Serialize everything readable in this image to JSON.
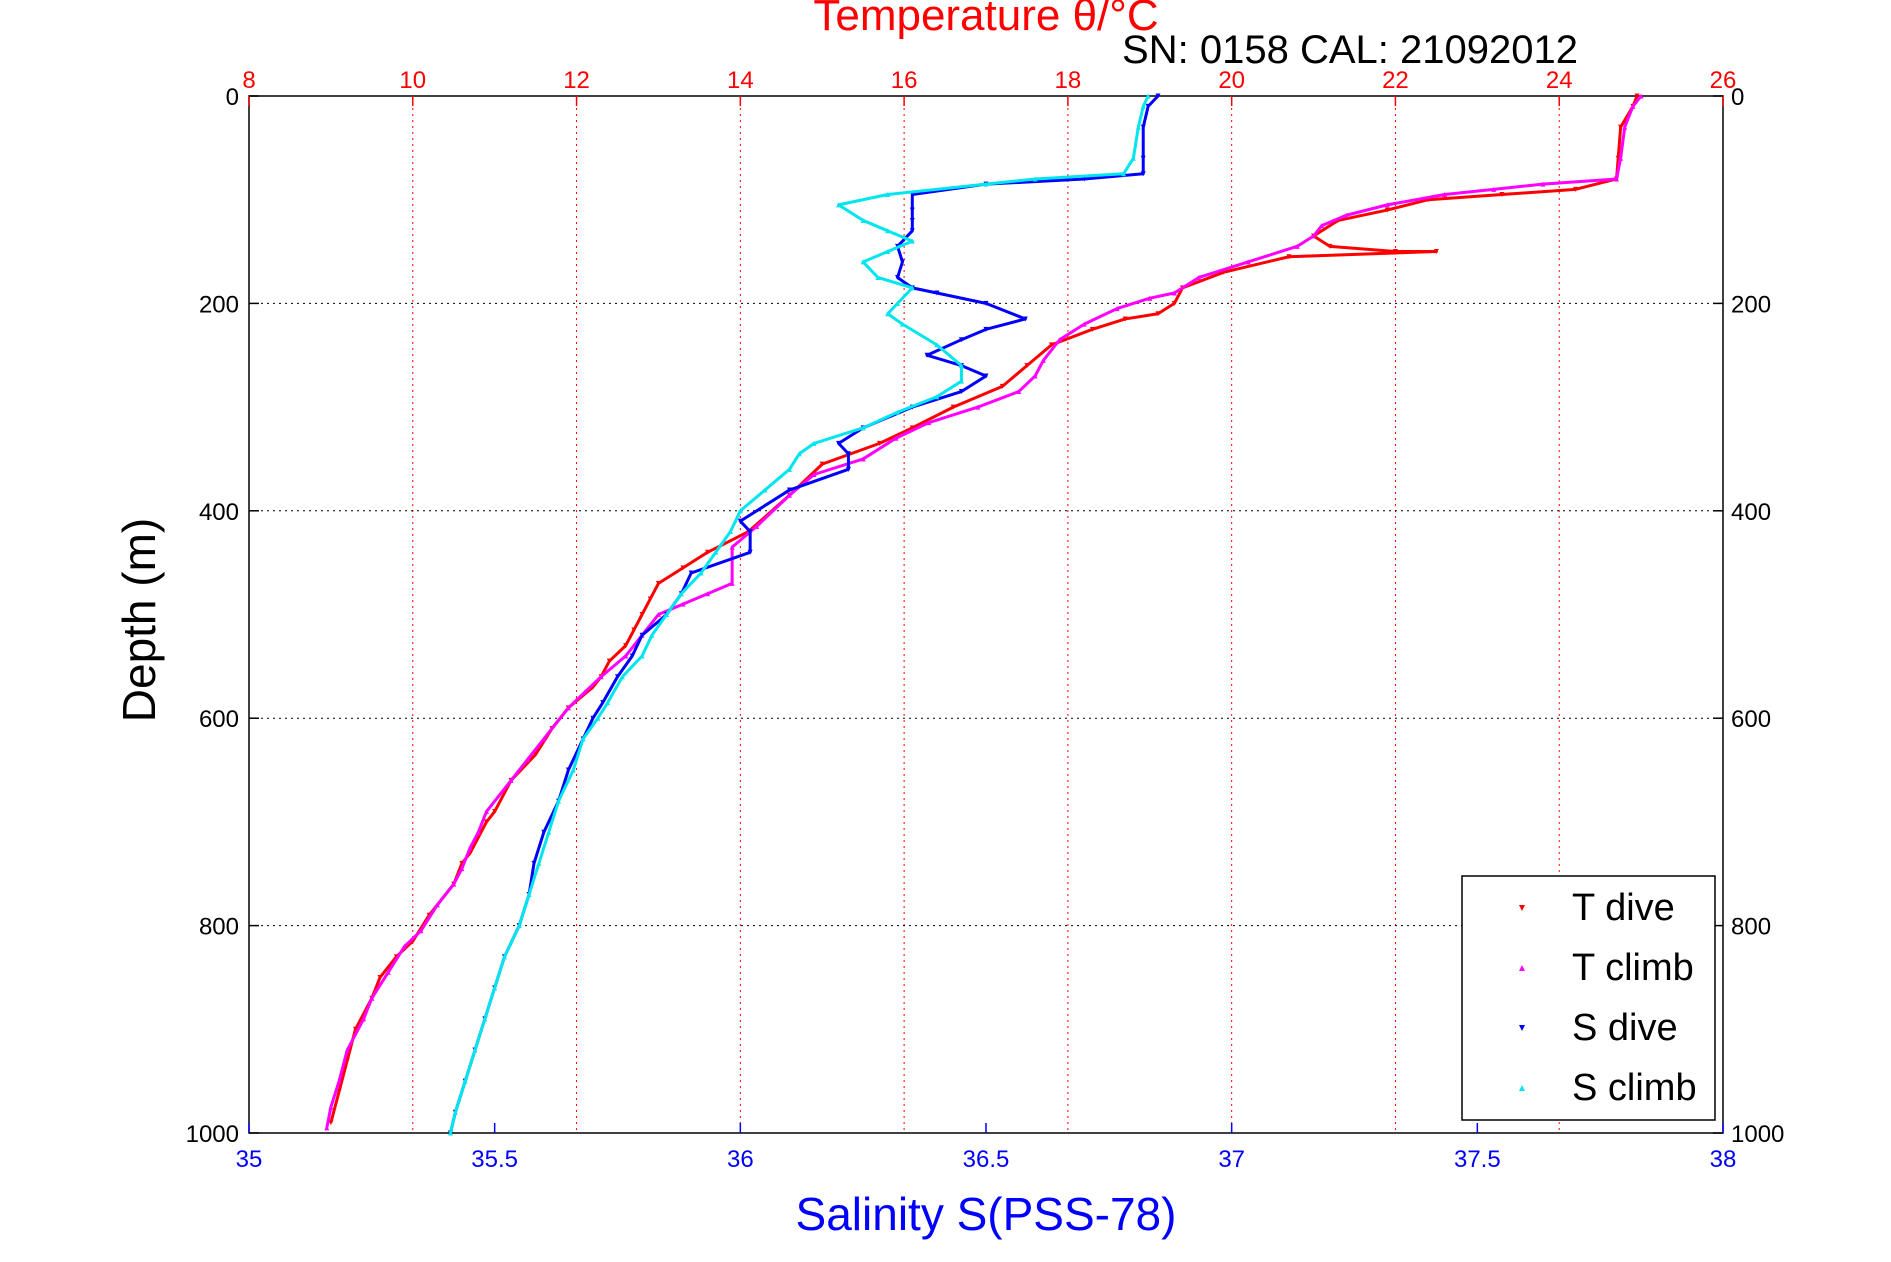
{
  "colors": {
    "temperature_axis": "#ff0000",
    "salinity_axis": "#0000ff",
    "depth_axis": "#000000",
    "t_dive": "#ff0000",
    "t_climb": "#ff00ff",
    "s_dive": "#0000ff",
    "s_climb": "#00e5ee"
  },
  "chart_data": {
    "type": "scatter",
    "title": "Temperature θ/°C",
    "subtitle": "SN: 0158  CAL: 21092012",
    "xlabel_top": "Temperature θ/°C",
    "xlabel_bottom": "Salinity S(PSS-78)",
    "ylabel": "Depth (m)",
    "x_top": {
      "range": [
        8,
        26
      ],
      "ticks": [
        8,
        10,
        12,
        14,
        16,
        18,
        20,
        22,
        24,
        26
      ],
      "tick_labels": [
        "8",
        "10",
        "12",
        "14",
        "16",
        "18",
        "20",
        "22",
        "24",
        "26"
      ]
    },
    "x_bottom": {
      "range": [
        35,
        38
      ],
      "ticks": [
        35,
        35.5,
        36,
        36.5,
        37,
        37.5,
        38
      ],
      "tick_labels": [
        "35",
        "35.5",
        "36",
        "36.5",
        "37",
        "37.5",
        "38"
      ]
    },
    "y": {
      "range": [
        0,
        1000
      ],
      "reversed": true,
      "ticks": [
        0,
        200,
        400,
        600,
        800,
        1000
      ],
      "tick_labels": [
        "0",
        "200",
        "400",
        "600",
        "800",
        "1000"
      ]
    },
    "grid": true,
    "legend_position": "bottom-right",
    "series": [
      {
        "name": "T dive",
        "axis": "temperature",
        "marker": "triangle-down",
        "points": [
          [
            24.95,
            0
          ],
          [
            24.9,
            10
          ],
          [
            24.75,
            30
          ],
          [
            24.72,
            60
          ],
          [
            24.7,
            80
          ],
          [
            24.2,
            90
          ],
          [
            23.3,
            95
          ],
          [
            22.4,
            100
          ],
          [
            21.9,
            110
          ],
          [
            21.3,
            120
          ],
          [
            21.0,
            135
          ],
          [
            21.2,
            145
          ],
          [
            22.0,
            150
          ],
          [
            22.5,
            150
          ],
          [
            20.7,
            155
          ],
          [
            19.9,
            170
          ],
          [
            19.4,
            185
          ],
          [
            19.3,
            200
          ],
          [
            19.1,
            210
          ],
          [
            18.7,
            215
          ],
          [
            18.3,
            225
          ],
          [
            17.8,
            240
          ],
          [
            17.5,
            260
          ],
          [
            17.2,
            280
          ],
          [
            16.6,
            300
          ],
          [
            16.1,
            320
          ],
          [
            15.7,
            335
          ],
          [
            15.0,
            355
          ],
          [
            14.6,
            385
          ],
          [
            14.1,
            420
          ],
          [
            13.6,
            440
          ],
          [
            13.3,
            455
          ],
          [
            13.0,
            470
          ],
          [
            12.9,
            485
          ],
          [
            12.8,
            500
          ],
          [
            12.7,
            515
          ],
          [
            12.6,
            530
          ],
          [
            12.4,
            545
          ],
          [
            12.3,
            560
          ],
          [
            12.2,
            570
          ],
          [
            11.9,
            590
          ],
          [
            11.7,
            610
          ],
          [
            11.5,
            635
          ],
          [
            11.2,
            660
          ],
          [
            11.0,
            690
          ],
          [
            10.9,
            700
          ],
          [
            10.7,
            730
          ],
          [
            10.6,
            740
          ],
          [
            10.5,
            760
          ],
          [
            10.2,
            790
          ],
          [
            10.0,
            815
          ],
          [
            9.8,
            830
          ],
          [
            9.6,
            850
          ],
          [
            9.5,
            870
          ],
          [
            9.3,
            900
          ],
          [
            9.2,
            930
          ],
          [
            9.1,
            960
          ],
          [
            9.0,
            990
          ]
        ]
      },
      {
        "name": "T climb",
        "axis": "temperature",
        "marker": "triangle-up",
        "points": [
          [
            25.0,
            0
          ],
          [
            24.9,
            10
          ],
          [
            24.8,
            30
          ],
          [
            24.75,
            60
          ],
          [
            24.7,
            80
          ],
          [
            23.8,
            85
          ],
          [
            23.2,
            90
          ],
          [
            22.6,
            95
          ],
          [
            21.9,
            105
          ],
          [
            21.4,
            115
          ],
          [
            21.1,
            125
          ],
          [
            21.0,
            135
          ],
          [
            20.8,
            145
          ],
          [
            20.2,
            160
          ],
          [
            19.6,
            175
          ],
          [
            19.3,
            190
          ],
          [
            19.0,
            195
          ],
          [
            18.6,
            205
          ],
          [
            18.2,
            220
          ],
          [
            17.9,
            235
          ],
          [
            17.7,
            255
          ],
          [
            17.6,
            270
          ],
          [
            17.4,
            285
          ],
          [
            16.9,
            300
          ],
          [
            16.3,
            315
          ],
          [
            15.9,
            330
          ],
          [
            15.5,
            350
          ],
          [
            14.9,
            365
          ],
          [
            14.6,
            385
          ],
          [
            14.2,
            415
          ],
          [
            13.9,
            435
          ],
          [
            13.9,
            470
          ],
          [
            13.6,
            480
          ],
          [
            13.3,
            490
          ],
          [
            13.0,
            500
          ],
          [
            12.8,
            520
          ],
          [
            12.6,
            540
          ],
          [
            12.3,
            560
          ],
          [
            12.1,
            575
          ],
          [
            11.9,
            590
          ],
          [
            11.6,
            620
          ],
          [
            11.4,
            640
          ],
          [
            11.2,
            660
          ],
          [
            10.9,
            690
          ],
          [
            10.8,
            710
          ],
          [
            10.7,
            725
          ],
          [
            10.6,
            745
          ],
          [
            10.5,
            760
          ],
          [
            10.3,
            780
          ],
          [
            10.1,
            805
          ],
          [
            9.9,
            820
          ],
          [
            9.7,
            845
          ],
          [
            9.5,
            870
          ],
          [
            9.4,
            890
          ],
          [
            9.2,
            920
          ],
          [
            9.1,
            950
          ],
          [
            9.0,
            975
          ],
          [
            8.95,
            995
          ]
        ]
      },
      {
        "name": "S dive",
        "axis": "salinity",
        "marker": "triangle-down",
        "points": [
          [
            36.85,
            0
          ],
          [
            36.83,
            10
          ],
          [
            36.82,
            30
          ],
          [
            36.82,
            60
          ],
          [
            36.82,
            75
          ],
          [
            36.7,
            80
          ],
          [
            36.5,
            85
          ],
          [
            36.35,
            95
          ],
          [
            36.35,
            110
          ],
          [
            36.35,
            120
          ],
          [
            36.35,
            130
          ],
          [
            36.32,
            145
          ],
          [
            36.33,
            160
          ],
          [
            36.32,
            175
          ],
          [
            36.35,
            185
          ],
          [
            36.4,
            190
          ],
          [
            36.5,
            200
          ],
          [
            36.58,
            215
          ],
          [
            36.5,
            225
          ],
          [
            36.45,
            235
          ],
          [
            36.38,
            250
          ],
          [
            36.45,
            260
          ],
          [
            36.5,
            270
          ],
          [
            36.45,
            285
          ],
          [
            36.35,
            300
          ],
          [
            36.25,
            320
          ],
          [
            36.2,
            335
          ],
          [
            36.22,
            345
          ],
          [
            36.22,
            360
          ],
          [
            36.1,
            380
          ],
          [
            36.0,
            410
          ],
          [
            36.02,
            420
          ],
          [
            36.02,
            440
          ],
          [
            35.9,
            460
          ],
          [
            35.88,
            480
          ],
          [
            35.85,
            500
          ],
          [
            35.8,
            520
          ],
          [
            35.78,
            540
          ],
          [
            35.75,
            560
          ],
          [
            35.72,
            585
          ],
          [
            35.7,
            600
          ],
          [
            35.68,
            620
          ],
          [
            35.65,
            650
          ],
          [
            35.63,
            680
          ],
          [
            35.6,
            710
          ],
          [
            35.58,
            740
          ],
          [
            35.57,
            770
          ],
          [
            35.55,
            800
          ],
          [
            35.52,
            830
          ],
          [
            35.5,
            860
          ],
          [
            35.48,
            890
          ],
          [
            35.46,
            920
          ],
          [
            35.44,
            950
          ],
          [
            35.42,
            980
          ],
          [
            35.41,
            1000
          ]
        ]
      },
      {
        "name": "S climb",
        "axis": "salinity",
        "marker": "triangle-up",
        "points": [
          [
            36.83,
            0
          ],
          [
            36.82,
            10
          ],
          [
            36.81,
            30
          ],
          [
            36.8,
            60
          ],
          [
            36.78,
            75
          ],
          [
            36.6,
            80
          ],
          [
            36.5,
            85
          ],
          [
            36.3,
            95
          ],
          [
            36.2,
            105
          ],
          [
            36.25,
            120
          ],
          [
            36.3,
            130
          ],
          [
            36.35,
            140
          ],
          [
            36.3,
            150
          ],
          [
            36.25,
            160
          ],
          [
            36.28,
            175
          ],
          [
            36.35,
            185
          ],
          [
            36.32,
            200
          ],
          [
            36.3,
            210
          ],
          [
            36.33,
            220
          ],
          [
            36.4,
            240
          ],
          [
            36.45,
            260
          ],
          [
            36.45,
            275
          ],
          [
            36.4,
            290
          ],
          [
            36.32,
            305
          ],
          [
            36.25,
            320
          ],
          [
            36.15,
            335
          ],
          [
            36.12,
            345
          ],
          [
            36.1,
            360
          ],
          [
            36.05,
            380
          ],
          [
            36.0,
            400
          ],
          [
            35.98,
            420
          ],
          [
            35.95,
            440
          ],
          [
            35.92,
            460
          ],
          [
            35.88,
            480
          ],
          [
            35.85,
            500
          ],
          [
            35.82,
            520
          ],
          [
            35.8,
            540
          ],
          [
            35.76,
            560
          ],
          [
            35.73,
            585
          ],
          [
            35.71,
            600
          ],
          [
            35.68,
            620
          ],
          [
            35.66,
            650
          ],
          [
            35.63,
            680
          ],
          [
            35.61,
            710
          ],
          [
            35.59,
            740
          ],
          [
            35.57,
            770
          ],
          [
            35.55,
            800
          ],
          [
            35.52,
            830
          ],
          [
            35.5,
            860
          ],
          [
            35.48,
            890
          ],
          [
            35.46,
            920
          ],
          [
            35.44,
            950
          ],
          [
            35.42,
            980
          ],
          [
            35.41,
            1000
          ]
        ]
      }
    ]
  }
}
